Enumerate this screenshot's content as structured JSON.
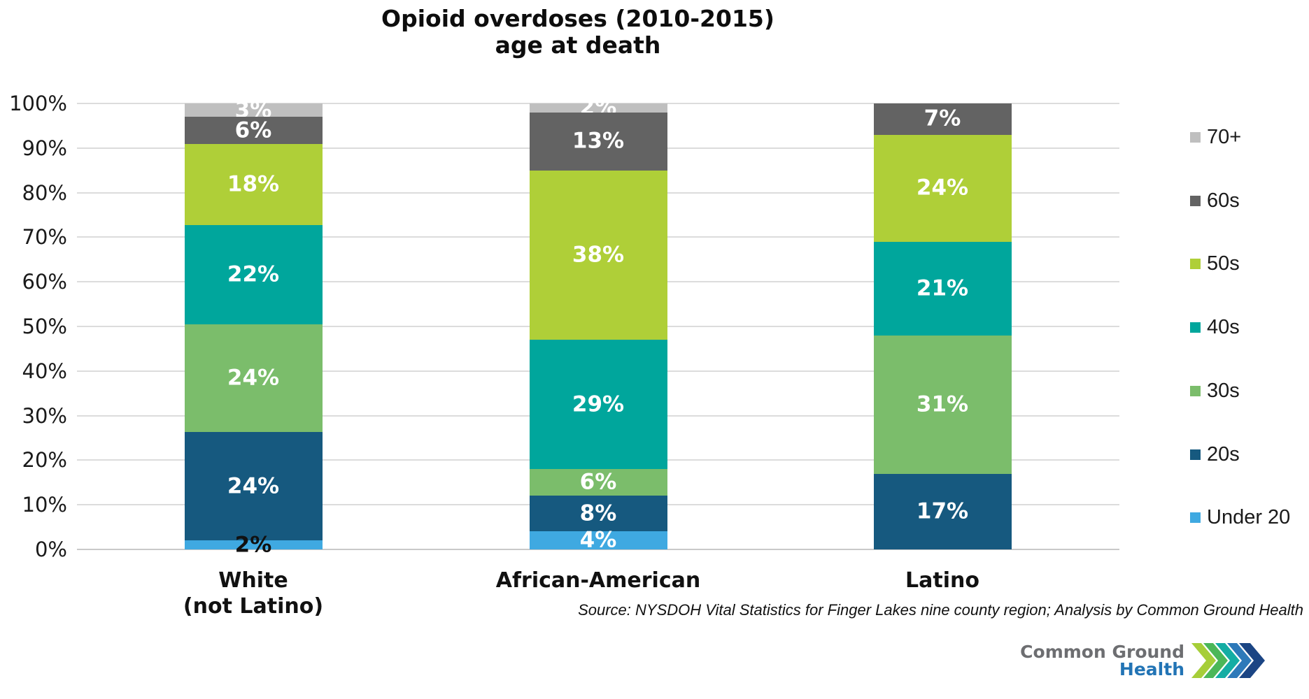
{
  "title": {
    "line1": "Opioid overdoses (2010-2015)",
    "line2": "age at death"
  },
  "y_axis": {
    "labels": [
      "100%",
      "90%",
      "80%",
      "70%",
      "60%",
      "50%",
      "40%",
      "30%",
      "20%",
      "10%",
      "0%"
    ]
  },
  "x_axis": {
    "categories_display": [
      [
        "White",
        "(not Latino)"
      ],
      [
        "African-American"
      ],
      [
        "Latino"
      ]
    ]
  },
  "legend": [
    {
      "label": "70+",
      "color": "#bfbfbf"
    },
    {
      "label": "60s",
      "color": "#636363"
    },
    {
      "label": "50s",
      "color": "#afcf38"
    },
    {
      "label": "40s",
      "color": "#00a69c"
    },
    {
      "label": "30s",
      "color": "#7bbd6b"
    },
    {
      "label": "20s",
      "color": "#16597f"
    },
    {
      "label": "Under 20",
      "color": "#3fa9e1"
    }
  ],
  "chart_data": {
    "type": "bar",
    "stacked": true,
    "percent_stacked": true,
    "title": "Opioid overdoses (2010-2015) age at death",
    "xlabel": "",
    "ylabel": "",
    "ylim": [
      0,
      100
    ],
    "grid": true,
    "legend_position": "right",
    "categories": [
      "White (not Latino)",
      "African-American",
      "Latino"
    ],
    "series": [
      {
        "name": "Under 20",
        "color": "#3fa9e1",
        "values": [
          2,
          4,
          0
        ]
      },
      {
        "name": "20s",
        "color": "#16597f",
        "values": [
          24,
          8,
          17
        ]
      },
      {
        "name": "30s",
        "color": "#7bbd6b",
        "values": [
          24,
          6,
          31
        ]
      },
      {
        "name": "40s",
        "color": "#00a69c",
        "values": [
          22,
          29,
          21
        ]
      },
      {
        "name": "50s",
        "color": "#afcf38",
        "values": [
          18,
          38,
          24
        ]
      },
      {
        "name": "60s",
        "color": "#636363",
        "values": [
          6,
          13,
          7
        ]
      },
      {
        "name": "70+",
        "color": "#bfbfbf",
        "values": [
          3,
          2,
          0
        ]
      }
    ],
    "label_format": "{value}%",
    "label_color_default": "#ffffff",
    "label_color_overrides": [
      {
        "category": 0,
        "series": "Under 20",
        "color": "#111111"
      }
    ]
  },
  "source": "Source: NYSDOH Vital Statistics for Finger Lakes nine county region; Analysis by Common Ground Health",
  "logo": {
    "line1": "Common Ground",
    "line2": "Health"
  }
}
